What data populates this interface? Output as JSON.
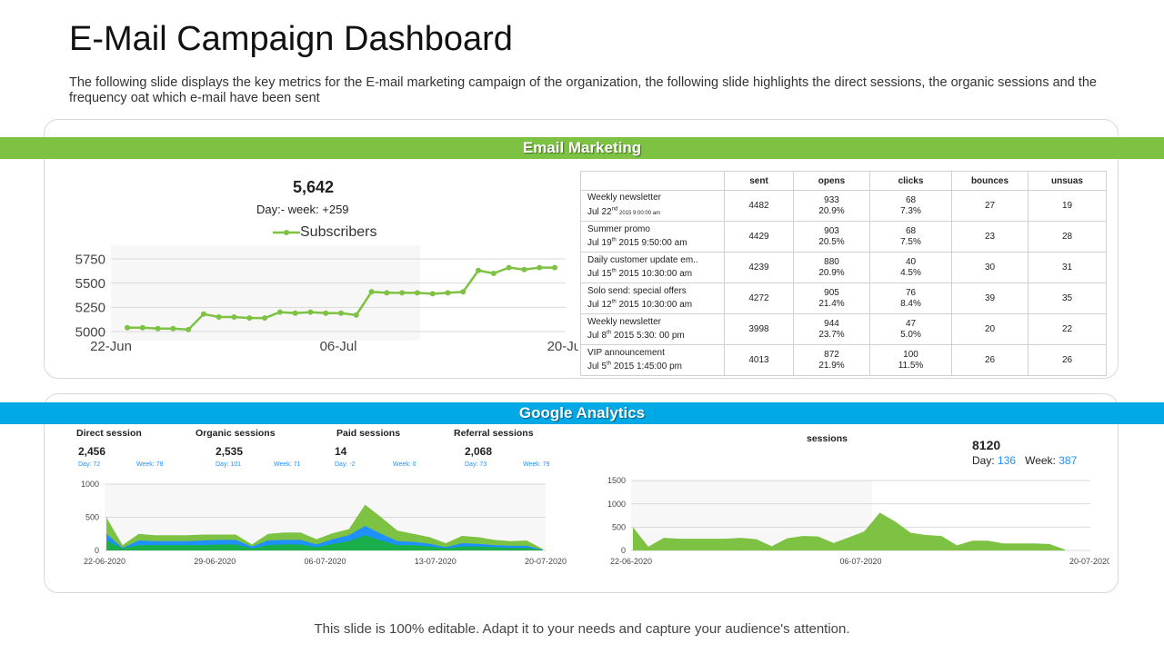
{
  "title": "E-Mail Campaign Dashboard",
  "description": "The following slide displays the key metrics for the E-mail marketing campaign of the organization, the following slide highlights the direct sessions, the organic sessions and the frequency oat which e-mail have been sent",
  "email_section": {
    "band_label": "Email Marketing",
    "subscribers_total": "5,642",
    "subscribers_change": "Day:- week: +259",
    "legend_label": "Subscribers"
  },
  "email_table": {
    "headers": [
      "sent",
      "opens",
      "clicks",
      "bounces",
      "unsuas"
    ],
    "rows": [
      {
        "name": "Weekly newsletter",
        "date_pre": "Jul 22",
        "date_sup": "nd",
        "date_post": " 2015 9:00:00 am",
        "date_small": true,
        "sent": "4482",
        "opens": "933",
        "opens_pct": "20.9%",
        "clicks": "68",
        "clicks_pct": "7.3%",
        "bounces": "27",
        "unsubs": "19"
      },
      {
        "name": "Summer promo",
        "date_pre": "Jul 19",
        "date_sup": "th",
        "date_post": " 2015 9:50:00 am",
        "date_small": false,
        "sent": "4429",
        "opens": "903",
        "opens_pct": "20.5%",
        "clicks": "68",
        "clicks_pct": "7.5%",
        "bounces": "23",
        "unsubs": "28"
      },
      {
        "name": "Daily customer update em..",
        "date_pre": "Jul 15",
        "date_sup": "th",
        "date_post": " 2015 10:30:00 am",
        "date_small": false,
        "sent": "4239",
        "opens": "880",
        "opens_pct": "20.9%",
        "clicks": "40",
        "clicks_pct": "4.5%",
        "bounces": "30",
        "unsubs": "31"
      },
      {
        "name": "Solo send: special offers",
        "date_pre": "Jul 12",
        "date_sup": "th",
        "date_post": " 2015 10:30:00 am",
        "date_small": false,
        "sent": "4272",
        "opens": "905",
        "opens_pct": "21.4%",
        "clicks": "76",
        "clicks_pct": "8.4%",
        "bounces": "39",
        "unsubs": "35"
      },
      {
        "name": "Weekly newsletter",
        "date_pre": "Jul 8",
        "date_sup": "th",
        "date_post": " 2015 5:30: 00 pm",
        "date_small": false,
        "sent": "3998",
        "opens": "944",
        "opens_pct": "23.7%",
        "clicks": "47",
        "clicks_pct": "5.0%",
        "bounces": "20",
        "unsubs": "22"
      },
      {
        "name": "VIP announcement",
        "date_pre": "Jul 5",
        "date_sup": "th",
        "date_post": " 2015 1:45:00 pm",
        "date_small": false,
        "sent": "4013",
        "opens": "872",
        "opens_pct": "21.9%",
        "clicks": "100",
        "clicks_pct": "11.5%",
        "bounces": "26",
        "unsubs": "26"
      }
    ]
  },
  "analytics_section": {
    "band_label": "Google Analytics",
    "metrics": [
      {
        "label": "Direct session",
        "value": "2,456",
        "day": "Day: 72",
        "week": "Week: 78"
      },
      {
        "label": "Organic sessions",
        "value": "2,535",
        "day": "Day: 101",
        "week": "Week: 71"
      },
      {
        "label": "Paid sessions",
        "value": "14",
        "day": "Day: -2",
        "week": "Week: 0"
      },
      {
        "label": "Referral sessions",
        "value": "2,068",
        "day": "Day: 73",
        "week": "Week: 79"
      }
    ],
    "sessions_title": "sessions",
    "sessions_total": "8120",
    "sessions_day_label": "Day:",
    "sessions_day": "136",
    "sessions_week_label": "Week:",
    "sessions_week": "387"
  },
  "chart_data": [
    {
      "type": "line",
      "series": [
        {
          "name": "Subscribers",
          "values": [
            5040,
            5040,
            5030,
            5030,
            5020,
            5180,
            5150,
            5150,
            5140,
            5140,
            5200,
            5190,
            5200,
            5190,
            5190,
            5170,
            5410,
            5400,
            5400,
            5400,
            5390,
            5400,
            5410,
            5630,
            5600,
            5660,
            5640,
            5660,
            5660
          ]
        }
      ],
      "x_tick_labels": [
        "22-Jun",
        "06-Jul",
        "20-Jul"
      ],
      "y_ticks": [
        5000,
        5250,
        5500,
        5750
      ],
      "ylim": [
        5000,
        5750
      ],
      "color": "#7dc242",
      "grid": true
    },
    {
      "type": "area",
      "series": [
        {
          "values": [
            500,
            80,
            250,
            230,
            230,
            230,
            240,
            240,
            240,
            90,
            250,
            270,
            270,
            170,
            260,
            320,
            690,
            500,
            300,
            250,
            200,
            110,
            220,
            200,
            160,
            140,
            150,
            20
          ]
        },
        {
          "values": [
            250,
            40,
            150,
            140,
            140,
            140,
            150,
            160,
            160,
            60,
            150,
            160,
            160,
            90,
            170,
            230,
            370,
            250,
            140,
            130,
            100,
            50,
            110,
            100,
            80,
            70,
            70,
            10
          ]
        },
        {
          "values": [
            150,
            30,
            80,
            80,
            80,
            80,
            80,
            90,
            90,
            30,
            80,
            90,
            90,
            50,
            100,
            140,
            230,
            150,
            80,
            80,
            60,
            30,
            60,
            60,
            50,
            40,
            40,
            5
          ]
        }
      ],
      "colors": [
        "#7dc242",
        "#1e90ff",
        "#1aaf4b"
      ],
      "x_tick_labels": [
        "22-06-2020",
        "29-06-2020",
        "06-07-2020",
        "13-07-2020",
        "20-07-2020"
      ],
      "y_ticks": [
        0,
        500,
        1000
      ],
      "ylim": [
        0,
        1000
      ],
      "grid": true
    },
    {
      "type": "area",
      "series": [
        {
          "values": [
            500,
            80,
            270,
            250,
            250,
            250,
            250,
            270,
            240,
            90,
            260,
            310,
            300,
            160,
            280,
            410,
            810,
            620,
            380,
            330,
            310,
            110,
            210,
            210,
            150,
            150,
            150,
            140,
            20
          ]
        }
      ],
      "colors": [
        "#7dc242"
      ],
      "x_tick_labels": [
        "22-06-2020",
        "06-07-2020",
        "20-07-2020"
      ],
      "y_ticks": [
        0,
        500,
        1000,
        1500
      ],
      "ylim": [
        0,
        1500
      ],
      "grid": true
    }
  ],
  "footer": "This slide is 100% editable. Adapt it to your needs and capture your audience's attention."
}
